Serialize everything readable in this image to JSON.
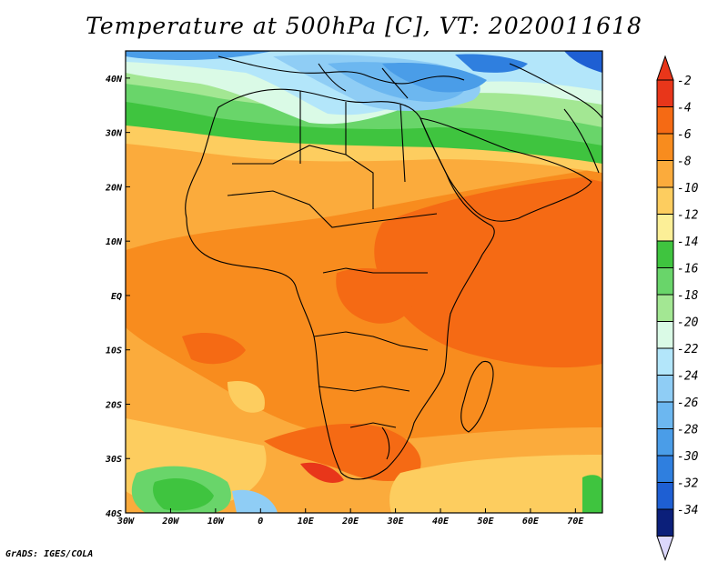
{
  "title": "Temperature at 500hPa [C], VT: 2020011618",
  "footer": "GrADS: IGES/COLA",
  "map": {
    "lon_range": [
      -30,
      76
    ],
    "lat_range": [
      -40,
      45
    ],
    "x_ticks": [
      {
        "lon": -30,
        "label": "30W"
      },
      {
        "lon": -20,
        "label": "20W"
      },
      {
        "lon": -10,
        "label": "10W"
      },
      {
        "lon": 0,
        "label": "0"
      },
      {
        "lon": 10,
        "label": "10E"
      },
      {
        "lon": 20,
        "label": "20E"
      },
      {
        "lon": 30,
        "label": "30E"
      },
      {
        "lon": 40,
        "label": "40E"
      },
      {
        "lon": 50,
        "label": "50E"
      },
      {
        "lon": 60,
        "label": "60E"
      },
      {
        "lon": 70,
        "label": "70E"
      }
    ],
    "y_ticks": [
      {
        "lat": 40,
        "label": "40N"
      },
      {
        "lat": 30,
        "label": "30N"
      },
      {
        "lat": 20,
        "label": "20N"
      },
      {
        "lat": 10,
        "label": "10N"
      },
      {
        "lat": 0,
        "label": "EQ"
      },
      {
        "lat": -10,
        "label": "10S"
      },
      {
        "lat": -20,
        "label": "20S"
      },
      {
        "lat": -30,
        "label": "30S"
      },
      {
        "lat": -40,
        "label": "40S"
      }
    ]
  },
  "colorbar": {
    "labels": [
      "-2",
      "-4",
      "-6",
      "-8",
      "-10",
      "-12",
      "-14",
      "-16",
      "-18",
      "-20",
      "-22",
      "-24",
      "-26",
      "-28",
      "-30",
      "-32",
      "-34"
    ],
    "colors": [
      "#e8361a",
      "#f56a14",
      "#f88c1e",
      "#fbab3c",
      "#fdcd5f",
      "#fcef97",
      "#3fc43f",
      "#69d56a",
      "#a3e793",
      "#dafae6",
      "#b3e6fa",
      "#8fcdf5",
      "#6cb7f0",
      "#4a9de8",
      "#2f7fdf",
      "#1e5fd3",
      "#0b1f7a"
    ],
    "top_color": "#e8361a",
    "bottom_color": "#dcd8fc"
  }
}
